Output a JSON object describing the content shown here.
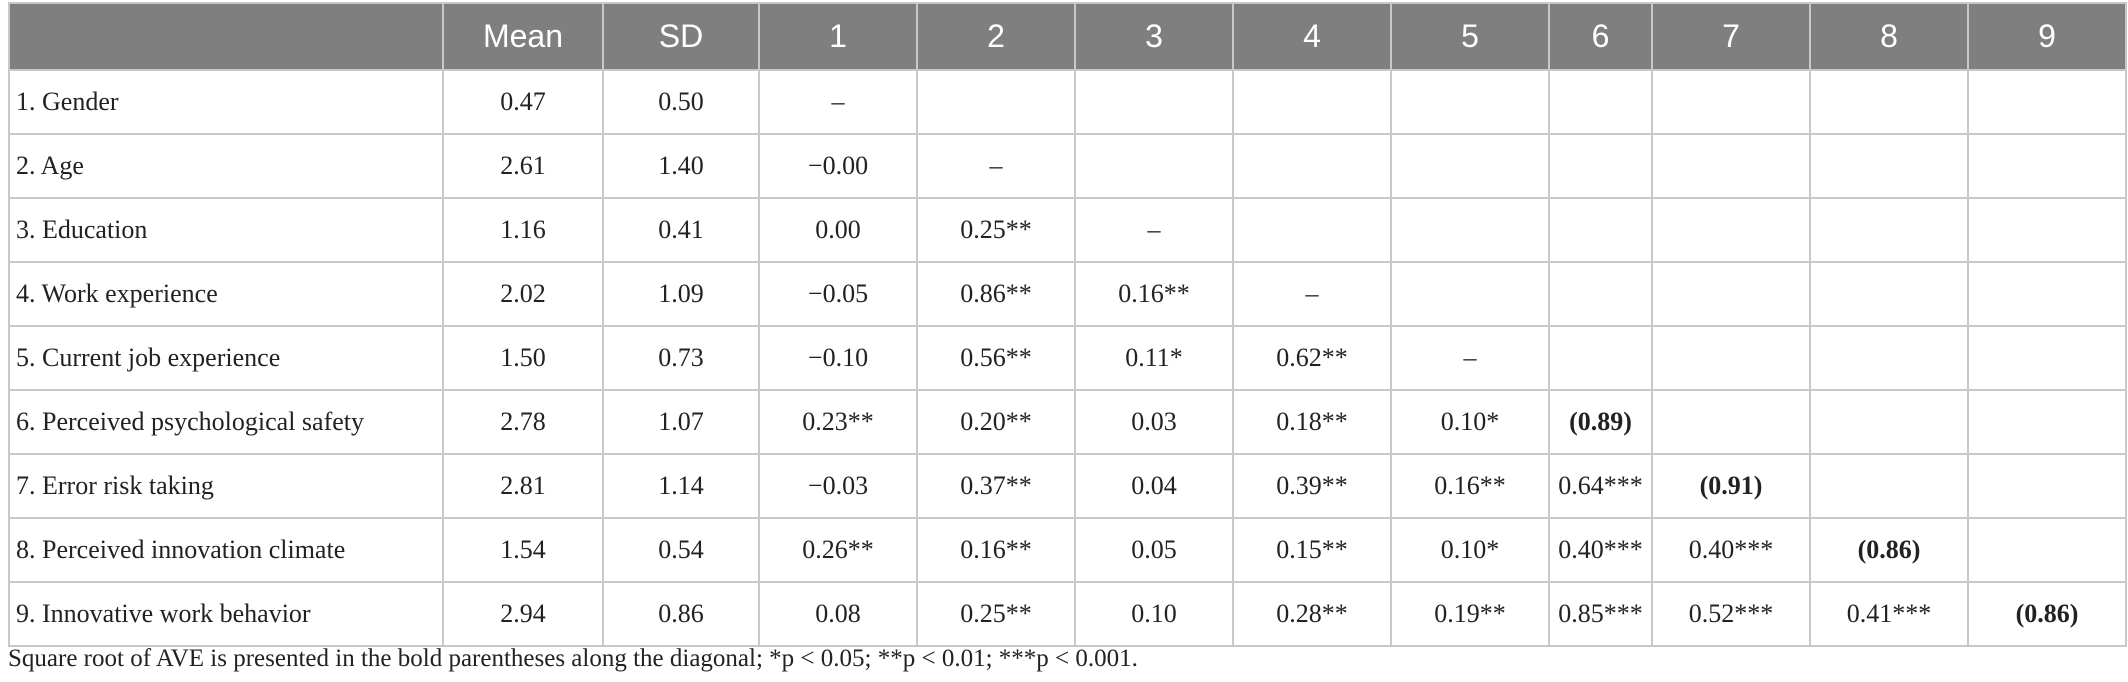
{
  "table": {
    "columns": [
      "Mean",
      "SD",
      "1",
      "2",
      "3",
      "4",
      "5",
      "6",
      "7",
      "8",
      "9"
    ],
    "rows": [
      [
        "1. Gender",
        "0.47",
        "0.50",
        "–"
      ],
      [
        "2. Age",
        "2.61",
        "1.40",
        "−0.00",
        "–"
      ],
      [
        "3. Education",
        "1.16",
        "0.41",
        "0.00",
        "0.25**",
        "–"
      ],
      [
        "4. Work experience",
        "2.02",
        "1.09",
        "−0.05",
        "0.86**",
        "0.16**",
        "–"
      ],
      [
        "5. Current job experience",
        "1.50",
        "0.73",
        "−0.10",
        "0.56**",
        "0.11*",
        "0.62**",
        "–"
      ],
      [
        "6. Perceived psychological safety",
        "2.78",
        "1.07",
        "0.23**",
        "0.20**",
        "0.03",
        "0.18**",
        "0.10*",
        "(0.89)"
      ],
      [
        "7. Error risk taking",
        "2.81",
        "1.14",
        "−0.03",
        "0.37**",
        "0.04",
        "0.39**",
        "0.16**",
        "0.64***",
        "(0.91)"
      ],
      [
        "8. Perceived innovation climate",
        "1.54",
        "0.54",
        "0.26**",
        "0.16**",
        "0.05",
        "0.15**",
        "0.10*",
        "0.40***",
        "0.40***",
        "(0.86)"
      ],
      [
        "9. Innovative work behavior",
        "2.94",
        "0.86",
        "0.08",
        "0.25**",
        "0.10",
        "0.28**",
        "0.19**",
        "0.85***",
        "0.52***",
        "0.41***",
        "(0.86)"
      ]
    ],
    "footnote": "Square root of AVE is presented in the bold parentheses along the diagonal; *p < 0.05; **p < 0.01; ***p < 0.001."
  }
}
